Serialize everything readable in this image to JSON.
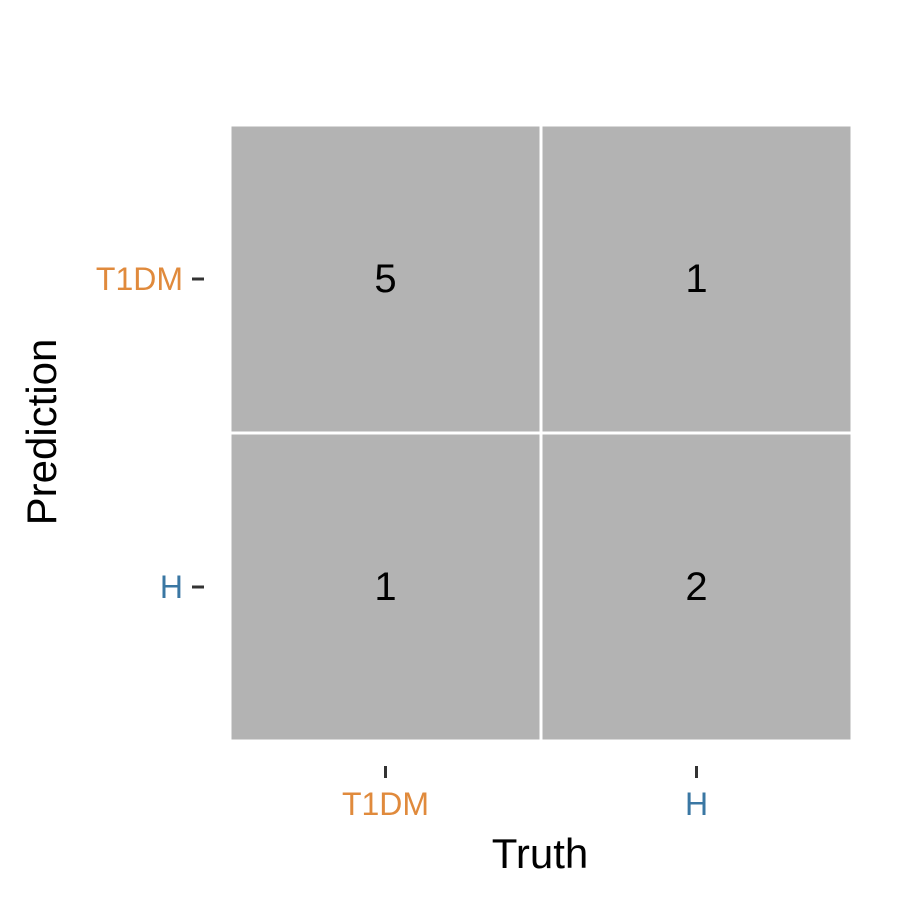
{
  "chart_data": {
    "type": "heatmap",
    "title": "",
    "xlabel": "Truth",
    "ylabel": "Prediction",
    "x_categories": [
      "T1DM",
      "H"
    ],
    "y_categories": [
      "T1DM",
      "H"
    ],
    "category_colors": {
      "T1DM": "#E08A3C",
      "H": "#3A77A3"
    },
    "cell_fill": "#B3B3B3",
    "cell_border": "#FFFFFF",
    "cells": [
      {
        "truth": "T1DM",
        "prediction": "T1DM",
        "value": 5
      },
      {
        "truth": "H",
        "prediction": "T1DM",
        "value": 1
      },
      {
        "truth": "T1DM",
        "prediction": "H",
        "value": 1
      },
      {
        "truth": "H",
        "prediction": "H",
        "value": 2
      }
    ],
    "grid": false,
    "legend": "none"
  }
}
